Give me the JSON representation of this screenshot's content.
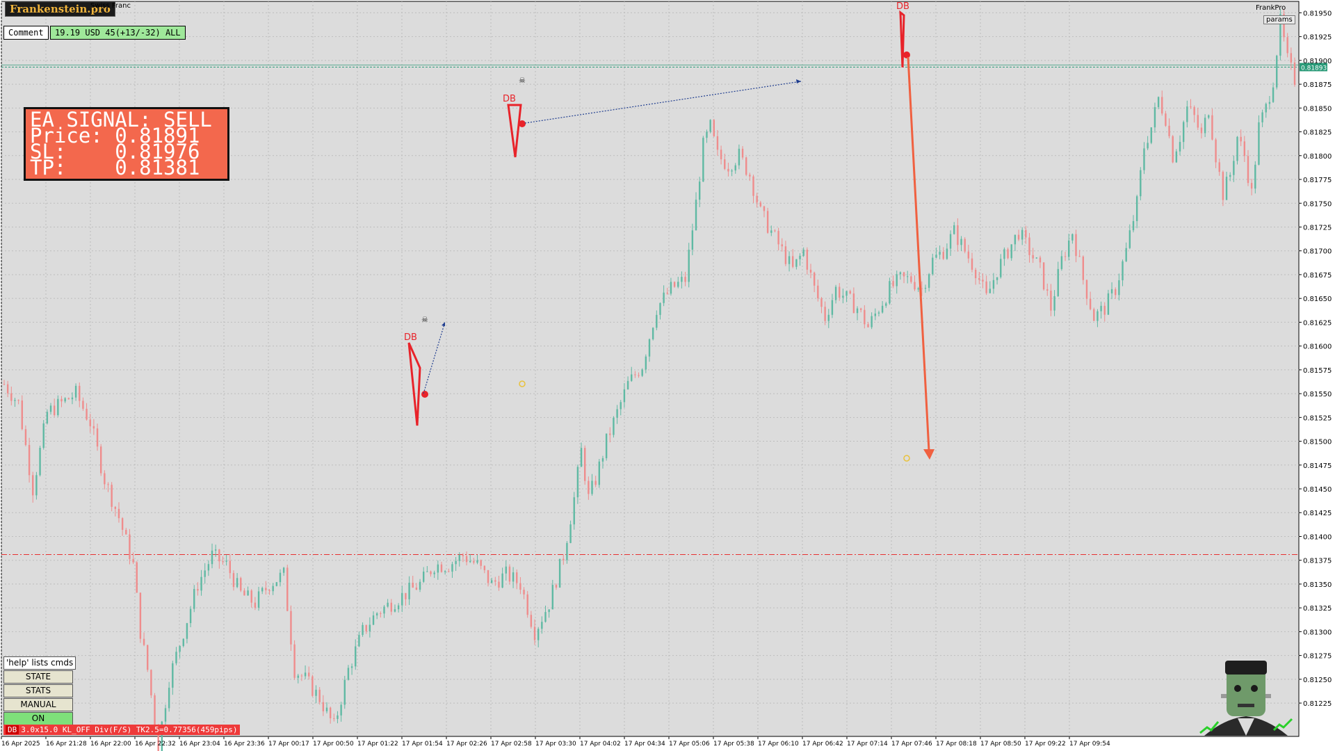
{
  "header": {
    "brand": "Frankenstein.pro",
    "symbol_description": "Swiss Franc",
    "comment_button": "Comment",
    "stats_text": "19.19 USD 45(+13/-32) ALL",
    "frankpro_label": "FrankPro",
    "params_button": "params"
  },
  "signal_panel": {
    "line1": "EA SIGNAL: SELL",
    "line2": "Price: 0.81891",
    "line3": "SL:    0.81976",
    "line4": "TP:    0.81381"
  },
  "controls": {
    "help": "'help' lists cmds",
    "state": "STATE",
    "stats": "STATS",
    "manual": "MANUAL",
    "on": "ON"
  },
  "status_bar": {
    "tag": "DB",
    "text": "3.0x15.0 KL_OFF Div(F/S) TK2.5=0.77356(459pips)"
  },
  "colors": {
    "background": "#dcdcdc",
    "bull_candle": "#5fb9a3",
    "bear_candle": "#ef8c8c",
    "pattern_red": "#e8232a",
    "signal_arrow": "#f06040",
    "signal_panel": "#f3684d",
    "current_price_line": "#2a9a78",
    "tp_line": "#e83030"
  },
  "chart_data": {
    "type": "candlestick",
    "x_tick_labels": [
      "16 Apr 2025",
      "16 Apr 21:28",
      "16 Apr 22:00",
      "16 Apr 22:32",
      "16 Apr 23:04",
      "16 Apr 23:36",
      "17 Apr 00:17",
      "17 Apr 00:50",
      "17 Apr 01:22",
      "17 Apr 01:54",
      "17 Apr 02:26",
      "17 Apr 02:58",
      "17 Apr 03:30",
      "17 Apr 04:02",
      "17 Apr 04:34",
      "17 Apr 05:06",
      "17 Apr 05:38",
      "17 Apr 06:10",
      "17 Apr 06:42",
      "17 Apr 07:14",
      "17 Apr 07:46",
      "17 Apr 08:18",
      "17 Apr 08:50",
      "17 Apr 09:22",
      "17 Apr 09:54"
    ],
    "y_tick_labels": [
      "0.81950",
      "0.81925",
      "0.81900",
      "0.81875",
      "0.81850",
      "0.81825",
      "0.81800",
      "0.81775",
      "0.81750",
      "0.81725",
      "0.81700",
      "0.81675",
      "0.81650",
      "0.81625",
      "0.81600",
      "0.81575",
      "0.81550",
      "0.81525",
      "0.81500",
      "0.81475",
      "0.81450",
      "0.81425",
      "0.81400",
      "0.81375",
      "0.81350",
      "0.81325",
      "0.81300",
      "0.81275",
      "0.81250",
      "0.81225"
    ],
    "ylim": [
      0.8119,
      0.81962
    ],
    "current_price": 0.81893,
    "current_price_label": "0.81893",
    "take_profit": 0.81381,
    "price_path": [
      [
        0,
        0.8156
      ],
      [
        4,
        0.8154
      ],
      [
        8,
        0.8145
      ],
      [
        12,
        0.8153
      ],
      [
        16,
        0.8154
      ],
      [
        20,
        0.8155
      ],
      [
        24,
        0.8152
      ],
      [
        28,
        0.8146
      ],
      [
        32,
        0.8142
      ],
      [
        36,
        0.8137
      ],
      [
        38,
        0.813
      ],
      [
        40,
        0.8126
      ],
      [
        43,
        0.8118
      ],
      [
        46,
        0.8125
      ],
      [
        50,
        0.813
      ],
      [
        54,
        0.8135
      ],
      [
        58,
        0.8138
      ],
      [
        62,
        0.8137
      ],
      [
        66,
        0.8134
      ],
      [
        70,
        0.8133
      ],
      [
        74,
        0.8135
      ],
      [
        78,
        0.8136
      ],
      [
        81,
        0.8126
      ],
      [
        84,
        0.8125
      ],
      [
        88,
        0.8123
      ],
      [
        92,
        0.812
      ],
      [
        96,
        0.8126
      ],
      [
        100,
        0.813
      ],
      [
        104,
        0.8132
      ],
      [
        108,
        0.8133
      ],
      [
        112,
        0.8134
      ],
      [
        116,
        0.8135
      ],
      [
        120,
        0.8137
      ],
      [
        124,
        0.8137
      ],
      [
        128,
        0.8138
      ],
      [
        132,
        0.8137
      ],
      [
        136,
        0.8135
      ],
      [
        140,
        0.8136
      ],
      [
        144,
        0.8135
      ],
      [
        148,
        0.813
      ],
      [
        152,
        0.8133
      ],
      [
        156,
        0.8138
      ],
      [
        159,
        0.8144
      ],
      [
        161,
        0.8149
      ],
      [
        163,
        0.8144
      ],
      [
        165,
        0.8146
      ],
      [
        168,
        0.815
      ],
      [
        171,
        0.8153
      ],
      [
        174,
        0.8156
      ],
      [
        178,
        0.8158
      ],
      [
        182,
        0.8164
      ],
      [
        186,
        0.8166
      ],
      [
        190,
        0.8167
      ],
      [
        193,
        0.8175
      ],
      [
        195,
        0.8181
      ],
      [
        197,
        0.8183
      ],
      [
        199,
        0.818
      ],
      [
        202,
        0.8179
      ],
      [
        205,
        0.818
      ],
      [
        208,
        0.8178
      ],
      [
        211,
        0.8174
      ],
      [
        214,
        0.8172
      ],
      [
        217,
        0.817
      ],
      [
        220,
        0.8168
      ],
      [
        223,
        0.817
      ],
      [
        226,
        0.8166
      ],
      [
        229,
        0.8163
      ],
      [
        232,
        0.8166
      ],
      [
        235,
        0.8165
      ],
      [
        238,
        0.8164
      ],
      [
        241,
        0.8162
      ],
      [
        244,
        0.8164
      ],
      [
        247,
        0.8166
      ],
      [
        250,
        0.8167
      ],
      [
        253,
        0.8167
      ],
      [
        256,
        0.8166
      ],
      [
        259,
        0.8169
      ],
      [
        262,
        0.817
      ],
      [
        265,
        0.8172
      ],
      [
        268,
        0.817
      ],
      [
        271,
        0.8168
      ],
      [
        274,
        0.8165
      ],
      [
        277,
        0.8168
      ],
      [
        280,
        0.817
      ],
      [
        283,
        0.8172
      ],
      [
        286,
        0.817
      ],
      [
        289,
        0.8168
      ],
      [
        292,
        0.8164
      ],
      [
        295,
        0.8169
      ],
      [
        298,
        0.8172
      ],
      [
        301,
        0.8167
      ],
      [
        304,
        0.8163
      ],
      [
        307,
        0.8164
      ],
      [
        310,
        0.8166
      ],
      [
        313,
        0.817
      ],
      [
        316,
        0.8175
      ],
      [
        318,
        0.8181
      ],
      [
        320,
        0.8183
      ],
      [
        322,
        0.8186
      ],
      [
        324,
        0.8184
      ],
      [
        326,
        0.818
      ],
      [
        328,
        0.8182
      ],
      [
        330,
        0.8185
      ],
      [
        332,
        0.8184
      ],
      [
        334,
        0.8182
      ],
      [
        336,
        0.8185
      ],
      [
        338,
        0.818
      ],
      [
        340,
        0.8176
      ],
      [
        342,
        0.8178
      ],
      [
        344,
        0.8182
      ],
      [
        346,
        0.818
      ],
      [
        348,
        0.8176
      ],
      [
        350,
        0.8183
      ],
      [
        352,
        0.8185
      ],
      [
        354,
        0.8188
      ],
      [
        356,
        0.8194
      ],
      [
        358,
        0.819
      ],
      [
        360,
        0.8188
      ]
    ],
    "annotations": [
      {
        "type": "pattern",
        "label": "DB"
      },
      {
        "type": "pattern",
        "label": "DB"
      },
      {
        "type": "pattern",
        "label": "DB"
      }
    ]
  }
}
